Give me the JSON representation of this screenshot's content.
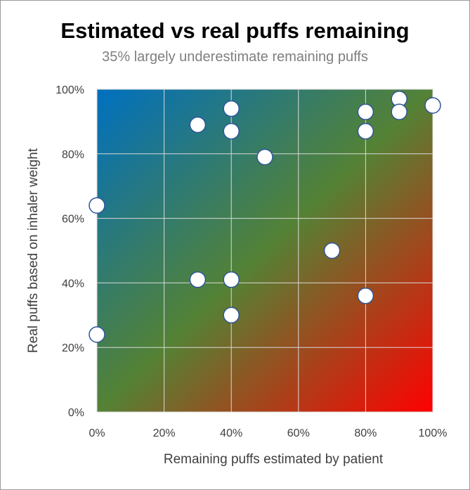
{
  "chart_data": {
    "type": "scatter",
    "title": "Estimated vs real puffs remaining",
    "subtitle": "35% largely underestimate remaining puffs",
    "xlabel": "Remaining puffs estimated by patient",
    "ylabel": "Real puffs based on inhaler weight",
    "xlim": [
      0,
      1
    ],
    "ylim": [
      0,
      1
    ],
    "xticks": [
      0,
      0.2,
      0.4,
      0.6,
      0.8,
      1.0
    ],
    "yticks": [
      0,
      0.2,
      0.4,
      0.6,
      0.8,
      1.0
    ],
    "xtick_labels": [
      "0%",
      "20%",
      "40%",
      "60%",
      "80%",
      "100%"
    ],
    "ytick_labels": [
      "0%",
      "20%",
      "40%",
      "60%",
      "80%",
      "100%"
    ],
    "grid": true,
    "background_gradient": [
      "#0070c0",
      "#548235",
      "#ff0000"
    ],
    "marker": {
      "fill": "#ffffff",
      "stroke": "#2f5597"
    },
    "points": [
      {
        "x": 0.0,
        "y": 0.64
      },
      {
        "x": 0.0,
        "y": 0.24
      },
      {
        "x": 0.3,
        "y": 0.89
      },
      {
        "x": 0.3,
        "y": 0.41
      },
      {
        "x": 0.4,
        "y": 0.94
      },
      {
        "x": 0.4,
        "y": 0.87
      },
      {
        "x": 0.4,
        "y": 0.41
      },
      {
        "x": 0.4,
        "y": 0.3
      },
      {
        "x": 0.5,
        "y": 0.79
      },
      {
        "x": 0.7,
        "y": 0.5
      },
      {
        "x": 0.8,
        "y": 0.93
      },
      {
        "x": 0.8,
        "y": 0.87
      },
      {
        "x": 0.8,
        "y": 0.36
      },
      {
        "x": 0.9,
        "y": 0.97
      },
      {
        "x": 0.9,
        "y": 0.93
      },
      {
        "x": 1.0,
        "y": 0.95
      }
    ]
  }
}
